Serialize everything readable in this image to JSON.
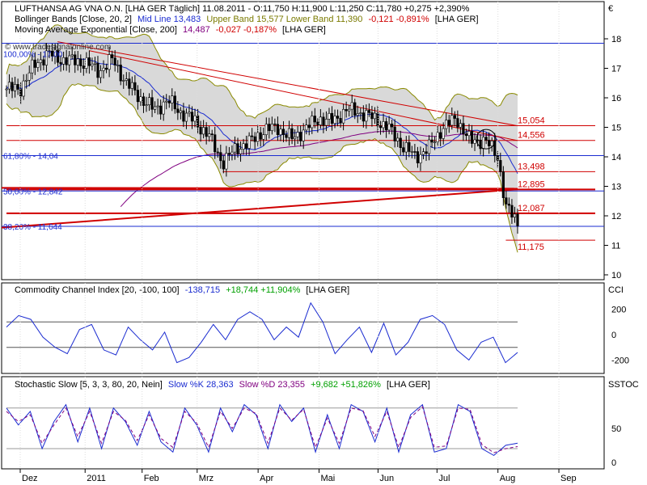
{
  "currency_label": "€",
  "legend": {
    "line1": "LUFTHANSA AG VNA O.N. [LHA GER  Täglich] 11.08.2011 - O:11,750 H:11,900 L:11,250 C:11,780 +0,275 +2,390%",
    "line2a": "Bollinger Bands [Close, 20, 2]",
    "line2b": "Mid Line 13,483",
    "line2c": "Upper Band 15,577 Lower Band 11,390",
    "line2d": "-0,121 -0,891%",
    "line2e": "[LHA GER]",
    "line3a": "Moving Average Exponential [Close, 200]",
    "line3b": "14,487",
    "line3c": "-0,027 -0,187%",
    "line3d": "[LHA GER]",
    "watermark": "© www.tradesignalonline.com"
  },
  "cci_legend": {
    "a": "Commodity Channel Index [20, -100, 100]",
    "b": "-138,715",
    "c": "+18,744 +11,904%",
    "d": "[LHA GER]",
    "axis_label": "CCI"
  },
  "stoch_legend": {
    "a": "Stochastic Slow [5, 3, 3, 80, 20, Nein]",
    "b": "Slow %K 28,363",
    "c": "Slow %D 23,355",
    "d": "+9,682 +51,826%",
    "e": "[LHA GER]",
    "axis_label": "SSTOC"
  },
  "price_axis_ticks": [
    "18",
    "17",
    "16",
    "15",
    "14",
    "13",
    "12",
    "11",
    "10"
  ],
  "cci_axis_ticks": [
    "200",
    "0",
    "-200"
  ],
  "stoch_axis_ticks": [
    "50",
    "0"
  ],
  "months": [
    "Dez",
    "2011",
    "Feb",
    "Mrz",
    "Apr",
    "Mai",
    "Jun",
    "Jul",
    "Aug",
    "Sep"
  ],
  "fib_labels": [
    "61,80% - 14,04",
    "50,00% - 12,842",
    "38,20% - 11,644",
    "100,00% - 17,00"
  ],
  "level_labels": [
    "15,054",
    "14,556",
    "13,498",
    "12,895",
    "12,087",
    "11,175"
  ],
  "chart_data": [
    {
      "type": "candlestick",
      "title": "LUFTHANSA AG VNA O.N. [LHA GER  Täglich]",
      "ylim": [
        10,
        18
      ],
      "x_labels": [
        "Dez",
        "2011",
        "Feb",
        "Mrz",
        "Apr",
        "Mai",
        "Jun",
        "Jul",
        "Aug",
        "Sep"
      ],
      "close_path": [
        [
          "2010-12-01",
          16.3
        ],
        [
          "2010-12-08",
          17.1
        ],
        [
          "2010-12-15",
          17.5
        ],
        [
          "2010-12-22",
          17.3
        ],
        [
          "2011-01-03",
          17.2
        ],
        [
          "2011-01-10",
          16.9
        ],
        [
          "2011-01-17",
          17.3
        ],
        [
          "2011-01-24",
          16.5
        ],
        [
          "2011-01-31",
          16.0
        ],
        [
          "2011-02-07",
          15.6
        ],
        [
          "2011-02-14",
          15.9
        ],
        [
          "2011-02-21",
          15.5
        ],
        [
          "2011-02-28",
          15.2
        ],
        [
          "2011-03-07",
          14.7
        ],
        [
          "2011-03-14",
          13.8
        ],
        [
          "2011-03-21",
          14.3
        ],
        [
          "2011-03-28",
          14.5
        ],
        [
          "2011-04-04",
          14.9
        ],
        [
          "2011-04-11",
          15.0
        ],
        [
          "2011-04-18",
          14.6
        ],
        [
          "2011-04-26",
          15.0
        ],
        [
          "2011-05-02",
          15.3
        ],
        [
          "2011-05-09",
          15.2
        ],
        [
          "2011-05-16",
          15.6
        ],
        [
          "2011-05-23",
          15.5
        ],
        [
          "2011-05-30",
          15.3
        ],
        [
          "2011-06-06",
          15.0
        ],
        [
          "2011-06-13",
          14.4
        ],
        [
          "2011-06-20",
          14.0
        ],
        [
          "2011-06-27",
          14.3
        ],
        [
          "2011-07-04",
          15.0
        ],
        [
          "2011-07-11",
          15.3
        ],
        [
          "2011-07-18",
          14.5
        ],
        [
          "2011-07-25",
          14.6
        ],
        [
          "2011-08-01",
          14.0
        ],
        [
          "2011-08-05",
          12.3
        ],
        [
          "2011-08-11",
          11.78
        ]
      ],
      "bollinger": {
        "period": 20,
        "stddev": 2,
        "mid": 13.483,
        "upper": 15.577,
        "lower": 11.39
      },
      "ema200": 14.487,
      "horizontal_levels": [
        15.054,
        14.556,
        13.498,
        12.895,
        12.087,
        11.175
      ],
      "fibonacci": [
        {
          "pct": "61,80%",
          "value": 14.04
        },
        {
          "pct": "50,00%",
          "value": 12.842
        },
        {
          "pct": "38,20%",
          "value": 11.644
        },
        {
          "pct": "100,00%",
          "value": 17.0
        }
      ],
      "last": {
        "date": "11.08.2011",
        "open": 11.75,
        "high": 11.9,
        "low": 11.25,
        "close": 11.78,
        "change": 0.275,
        "change_pct": 2.39
      }
    },
    {
      "type": "line",
      "title": "Commodity Channel Index [20, -100, 100]",
      "ylim": [
        -280,
        280
      ],
      "levels": [
        100,
        -100
      ],
      "series": [
        {
          "name": "CCI",
          "last": -138.715,
          "values": [
            60,
            150,
            120,
            -20,
            -100,
            -150,
            40,
            80,
            -120,
            -160,
            60,
            -40,
            -120,
            20,
            -220,
            -180,
            -60,
            80,
            -40,
            120,
            180,
            120,
            -40,
            60,
            -20,
            250,
            100,
            -150,
            -40,
            60,
            -140,
            90,
            -160,
            -60,
            120,
            150,
            80,
            -120,
            -200,
            -60,
            -20,
            -220,
            -140
          ]
        }
      ]
    },
    {
      "type": "line",
      "title": "Stochastic Slow [5, 3, 3, 80, 20, Nein]",
      "ylim": [
        -5,
        100
      ],
      "levels": [
        80,
        20
      ],
      "series": [
        {
          "name": "Slow %K",
          "last": 28.363,
          "values": [
            80,
            55,
            75,
            20,
            60,
            85,
            30,
            80,
            20,
            80,
            60,
            25,
            75,
            30,
            15,
            80,
            55,
            15,
            80,
            45,
            85,
            70,
            20,
            85,
            60,
            80,
            15,
            70,
            20,
            85,
            75,
            30,
            80,
            15,
            70,
            85,
            15,
            20,
            85,
            75,
            20,
            10,
            25,
            28
          ]
        },
        {
          "name": "Slow %D",
          "last": 23.355,
          "values": [
            75,
            60,
            70,
            28,
            55,
            80,
            38,
            75,
            28,
            75,
            62,
            32,
            70,
            35,
            22,
            75,
            58,
            22,
            75,
            50,
            80,
            72,
            28,
            80,
            62,
            78,
            22,
            65,
            28,
            80,
            76,
            38,
            75,
            22,
            66,
            82,
            22,
            24,
            80,
            78,
            26,
            14,
            20,
            23
          ]
        }
      ]
    }
  ]
}
